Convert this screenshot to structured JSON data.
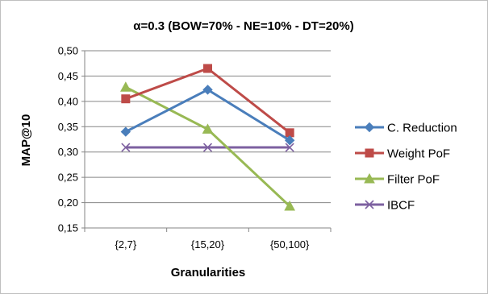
{
  "chart_data": {
    "type": "line",
    "title": "α=0.3 (BOW=70% - NE=10% - DT=20%)",
    "xlabel": "Granularities",
    "ylabel": "MAP@10",
    "categories": [
      "{2,7}",
      "{15,20}",
      "{50,100}"
    ],
    "ylim": [
      0.15,
      0.5
    ],
    "yticks": [
      "0,15",
      "0,20",
      "0,25",
      "0,30",
      "0,35",
      "0,40",
      "0,45",
      "0,50"
    ],
    "ytick_values": [
      0.15,
      0.2,
      0.25,
      0.3,
      0.35,
      0.4,
      0.45,
      0.5
    ],
    "grid": true,
    "legend_position": "right",
    "series": [
      {
        "name": "C. Reduction",
        "values": [
          0.34,
          0.423,
          0.323
        ],
        "color": "#4a7ebb",
        "marker": "diamond"
      },
      {
        "name": "Weight PoF",
        "values": [
          0.405,
          0.465,
          0.338
        ],
        "color": "#be4b48",
        "marker": "square"
      },
      {
        "name": "Filter PoF",
        "values": [
          0.428,
          0.345,
          0.193
        ],
        "color": "#98b954",
        "marker": "triangle"
      },
      {
        "name": "IBCF",
        "values": [
          0.309,
          0.309,
          0.309
        ],
        "color": "#7d60a0",
        "marker": "x"
      }
    ]
  }
}
